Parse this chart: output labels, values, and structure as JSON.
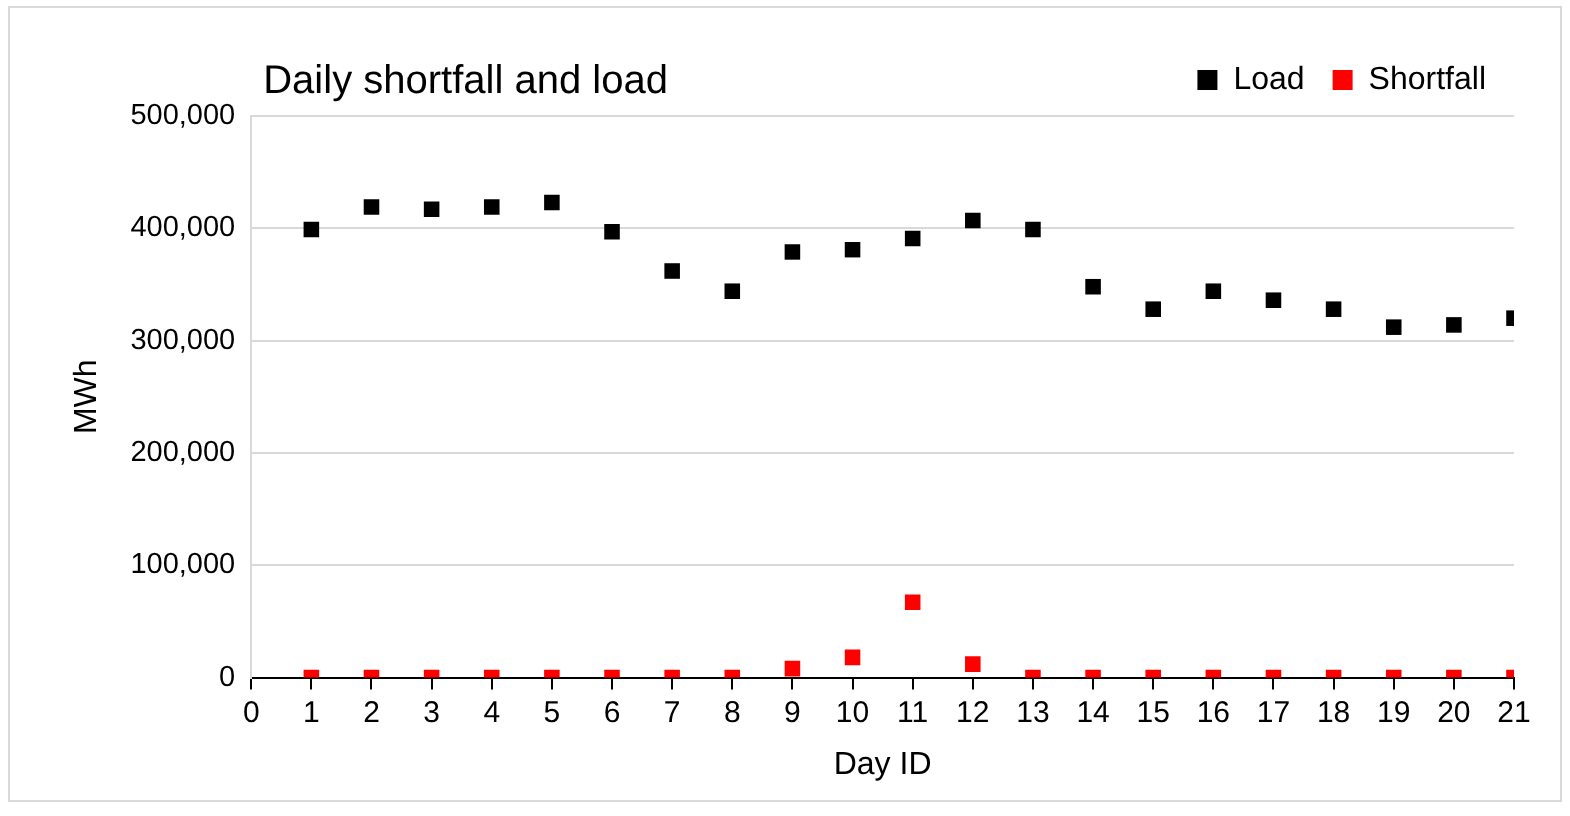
{
  "chart_data": {
    "type": "scatter",
    "title": "Daily shortfall and load",
    "xlabel": "Day ID",
    "ylabel": "MWh",
    "x": [
      1,
      2,
      3,
      4,
      5,
      6,
      7,
      8,
      9,
      10,
      11,
      12,
      13,
      14,
      15,
      16,
      17,
      18,
      19,
      20,
      21
    ],
    "series": [
      {
        "name": "Load",
        "color": "#000000",
        "values": [
          399000,
          419000,
          417000,
          419000,
          423000,
          397000,
          362000,
          344000,
          379000,
          381000,
          391000,
          407000,
          399000,
          348000,
          328000,
          344000,
          336000,
          328000,
          312000,
          314000,
          320000
        ]
      },
      {
        "name": "Shortfall",
        "color": "#ff0000",
        "values": [
          0,
          0,
          0,
          0,
          0,
          0,
          0,
          0,
          8000,
          18000,
          67000,
          12000,
          0,
          0,
          0,
          0,
          0,
          0,
          0,
          0,
          0
        ]
      }
    ],
    "xlim": [
      0,
      21
    ],
    "xticks": [
      0,
      1,
      2,
      3,
      4,
      5,
      6,
      7,
      8,
      9,
      10,
      11,
      12,
      13,
      14,
      15,
      16,
      17,
      18,
      19,
      20,
      21
    ],
    "ylim": [
      0,
      500000
    ],
    "yticks": [
      0,
      {
        "value": 100000,
        "label": "100,000"
      },
      {
        "value": 200000,
        "label": "200,000"
      },
      {
        "value": 300000,
        "label": "300,000"
      },
      {
        "value": 400000,
        "label": "400,000"
      },
      {
        "value": 500000,
        "label": "500,000"
      }
    ],
    "grid": "y",
    "legend": "top right",
    "marker": "square"
  }
}
